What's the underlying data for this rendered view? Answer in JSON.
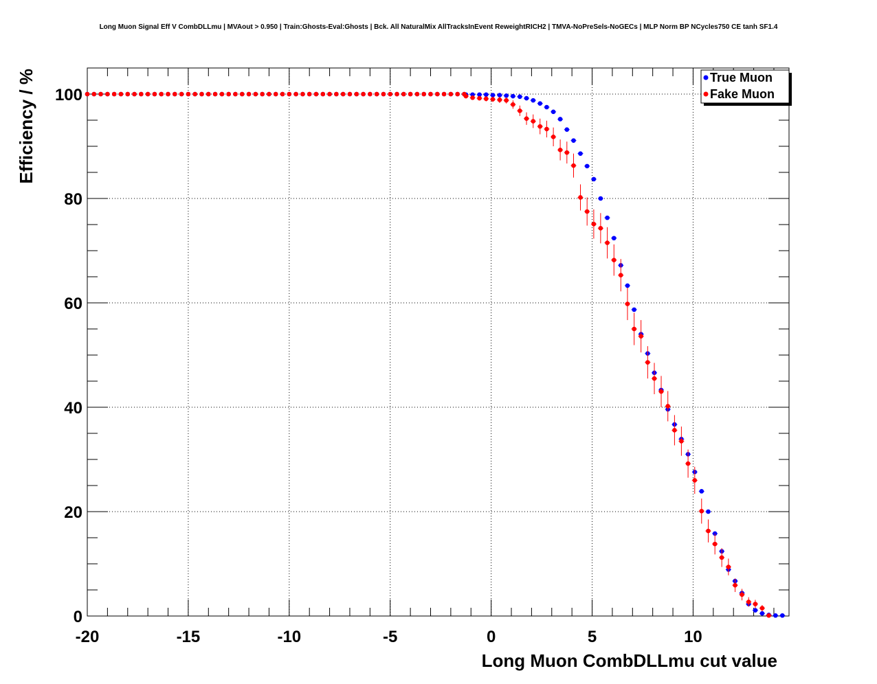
{
  "chart_data": {
    "type": "scatter",
    "title": "Long Muon Signal Eff V CombDLLmu | MVAout > 0.950 | Train:Ghosts-Eval:Ghosts | Bck. All NaturalMix AllTracksInEvent ReweightRICH2 | TMVA-NoPreSels-NoGECs | MLP Norm BP NCycles750 CE tanh SF1.4",
    "xlabel": "Long Muon CombDLLmu cut value",
    "ylabel": "Efficiency / %",
    "xlim": [
      -20,
      14.75
    ],
    "ylim": [
      0,
      105
    ],
    "x_ticks": [
      "-20",
      "-15",
      "-10",
      "-5",
      "0",
      "5",
      "10"
    ],
    "x_tick_values": [
      -20,
      -15,
      -10,
      -5,
      0,
      5,
      10
    ],
    "y_ticks": [
      "0",
      "20",
      "40",
      "60",
      "80",
      "100"
    ],
    "y_tick_values": [
      0,
      20,
      40,
      60,
      80,
      100
    ],
    "grid": true,
    "legend_position": "top-right",
    "series": [
      {
        "name": "True Muon",
        "color": "#0000ff",
        "x": [
          -1.25,
          -0.92,
          -0.58,
          -0.25,
          0.08,
          0.42,
          0.75,
          1.08,
          1.42,
          1.75,
          2.08,
          2.42,
          2.75,
          3.08,
          3.42,
          3.75,
          4.08,
          4.42,
          4.75,
          5.08,
          5.42,
          5.75,
          6.08,
          6.42,
          6.75,
          7.08,
          7.42,
          7.75,
          8.08,
          8.42,
          8.75,
          9.08,
          9.42,
          9.75,
          10.08,
          10.42,
          10.75,
          11.08,
          11.42,
          11.75,
          12.08,
          12.42,
          12.75,
          13.08,
          13.42,
          13.75,
          14.08,
          14.42
        ],
        "y": [
          99.9,
          99.9,
          99.9,
          99.9,
          99.8,
          99.8,
          99.7,
          99.6,
          99.5,
          99.2,
          98.8,
          98.2,
          97.5,
          96.6,
          95.2,
          93.2,
          91.1,
          88.6,
          86.2,
          83.7,
          80.0,
          76.3,
          72.4,
          67.2,
          63.3,
          58.7,
          54.0,
          50.3,
          46.6,
          43.3,
          39.6,
          36.7,
          33.9,
          31.0,
          27.6,
          23.9,
          20.0,
          15.8,
          12.4,
          8.9,
          6.7,
          4.4,
          2.3,
          1.1,
          0.5,
          0.2,
          0.1,
          0.1
        ],
        "err": [
          0,
          0,
          0,
          0,
          0,
          0,
          0,
          0,
          0,
          0,
          0,
          0,
          0,
          0,
          0,
          0,
          0,
          0,
          0,
          0,
          0,
          0,
          0,
          0,
          0,
          0,
          0,
          0,
          0,
          0,
          0,
          0,
          0,
          0,
          0,
          0,
          0,
          0,
          0,
          0,
          0,
          0,
          0,
          0,
          0,
          0,
          0,
          0
        ]
      },
      {
        "name": "Fake Muon",
        "color": "#ff0000",
        "x": [
          -1.25,
          -0.92,
          -0.58,
          -0.25,
          0.08,
          0.42,
          0.75,
          1.08,
          1.42,
          1.75,
          2.08,
          2.42,
          2.75,
          3.08,
          3.42,
          3.75,
          4.08,
          4.42,
          4.75,
          5.08,
          5.42,
          5.75,
          6.08,
          6.42,
          6.75,
          7.08,
          7.42,
          7.75,
          8.08,
          8.42,
          8.75,
          9.08,
          9.42,
          9.75,
          10.08,
          10.42,
          10.75,
          11.08,
          11.42,
          11.75,
          12.08,
          12.42,
          12.75,
          13.08,
          13.42,
          13.75
        ],
        "y": [
          99.6,
          99.3,
          99.2,
          99.1,
          99.0,
          98.9,
          98.8,
          98.0,
          96.8,
          95.3,
          94.8,
          93.8,
          93.3,
          91.8,
          89.3,
          88.8,
          86.3,
          80.2,
          77.5,
          75.1,
          74.3,
          71.5,
          68.2,
          65.3,
          59.8,
          55.0,
          53.6,
          48.6,
          45.5,
          43.0,
          40.2,
          35.6,
          33.5,
          29.2,
          26.0,
          20.1,
          16.3,
          13.8,
          11.2,
          9.4,
          5.9,
          4.1,
          2.7,
          2.3,
          1.5,
          0.1
        ],
        "err": [
          0.3,
          0.4,
          0.4,
          0.5,
          0.5,
          0.6,
          0.6,
          0.8,
          1.0,
          1.2,
          1.3,
          1.5,
          1.6,
          1.8,
          2.0,
          2.1,
          2.3,
          2.5,
          2.7,
          2.8,
          2.9,
          3.0,
          3.0,
          3.1,
          3.1,
          3.1,
          3.1,
          3.1,
          3.0,
          3.0,
          2.9,
          2.9,
          2.8,
          2.7,
          2.6,
          2.4,
          2.2,
          2.0,
          1.8,
          1.6,
          1.3,
          1.1,
          0.9,
          0.8,
          0.6,
          0.2
        ]
      }
    ]
  }
}
